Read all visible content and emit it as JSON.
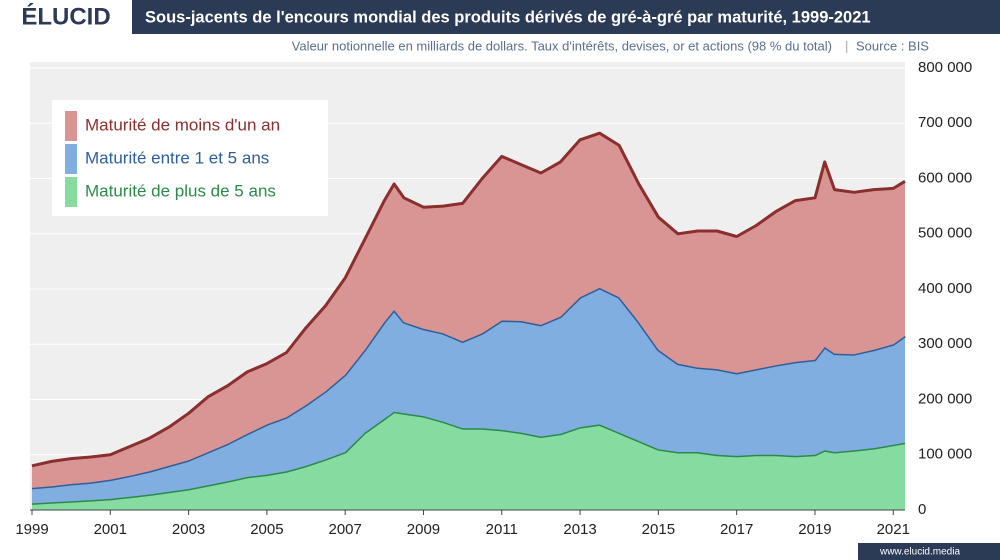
{
  "brand": "ÉLUCID",
  "footer": "www.elucid.media",
  "chart_data": {
    "type": "stacked-area",
    "title": "Sous-jacents de l'encours mondial des produits dérivés de gré-à-gré par maturité, 1999-2021",
    "subtitle": "Valeur notionnelle en milliards de dollars. Taux d'intérêts, devises, or et actions (98 % du total)",
    "source": "Source : BIS",
    "legend": "upper left",
    "grid": true,
    "x": [
      1999,
      1999.5,
      2000,
      2000.5,
      2001,
      2001.5,
      2002,
      2002.5,
      2003,
      2003.5,
      2004,
      2004.5,
      2005,
      2005.5,
      2006,
      2006.5,
      2007,
      2007.5,
      2008,
      2008.25,
      2008.5,
      2009,
      2009.5,
      2010,
      2010.5,
      2011,
      2011.5,
      2012,
      2012.5,
      2013,
      2013.5,
      2014,
      2014.5,
      2015,
      2015.5,
      2016,
      2016.5,
      2017,
      2017.5,
      2018,
      2018.5,
      2019,
      2019.25,
      2019.5,
      2020,
      2020.5,
      2021,
      2021.3
    ],
    "xlim": [
      1999,
      2021.3
    ],
    "xticks": [
      1999,
      2001,
      2003,
      2005,
      2007,
      2009,
      2011,
      2013,
      2015,
      2017,
      2019,
      2021
    ],
    "ylim": [
      0,
      800000
    ],
    "yticks": [
      0,
      {
        "value": 100000,
        "label": "100 000"
      },
      {
        "value": 200000,
        "label": "200 000"
      },
      {
        "value": 300000,
        "label": "300 000"
      },
      {
        "value": 400000,
        "label": "400 000"
      },
      {
        "value": 500000,
        "label": "500 000"
      },
      {
        "value": 600000,
        "label": "600 000"
      },
      {
        "value": 700000,
        "label": "700 000"
      },
      {
        "value": 800000,
        "label": "800 000"
      }
    ],
    "series": [
      {
        "name": "Maturité de moins d'un an",
        "color": "#d99593",
        "line_color": "#8b2e2e",
        "values": [
          40000,
          45000,
          46000,
          46000,
          45000,
          53000,
          60000,
          70000,
          85000,
          100000,
          105000,
          112000,
          110000,
          117000,
          140000,
          155000,
          175000,
          200000,
          220000,
          228000,
          225000,
          220000,
          230000,
          250000,
          280000,
          297000,
          283000,
          275000,
          280000,
          285000,
          280000,
          275000,
          250000,
          240000,
          235000,
          247000,
          250000,
          247000,
          260000,
          278000,
          292000,
          293000,
          335000,
          297000,
          293000,
          290000,
          282000,
          280000
        ]
      },
      {
        "name": "Maturité entre 1 et 5 ans",
        "color": "#80aee0",
        "line_color": "#2e5f9b",
        "values": [
          28000,
          29000,
          31000,
          32000,
          35000,
          38000,
          42000,
          47000,
          52000,
          60000,
          68000,
          78000,
          91000,
          98000,
          110000,
          123000,
          140000,
          150000,
          175000,
          184000,
          165000,
          158000,
          160000,
          157000,
          172000,
          198000,
          202000,
          202000,
          212000,
          235000,
          247000,
          245000,
          215000,
          180000,
          160000,
          153000,
          155000,
          150000,
          155000,
          162000,
          170000,
          172000,
          187000,
          178000,
          174000,
          178000,
          182000,
          193000
        ]
      },
      {
        "name": "Maturité de plus de 5 ans",
        "color": "#86dba0",
        "line_color": "#2b8a4a",
        "values": [
          12000,
          14000,
          16000,
          18000,
          20000,
          24000,
          28000,
          33000,
          38000,
          45000,
          52000,
          60000,
          64000,
          70000,
          80000,
          92000,
          105000,
          140000,
          165000,
          178000,
          175000,
          170000,
          160000,
          148000,
          148000,
          145000,
          140000,
          133000,
          138000,
          150000,
          155000,
          140000,
          125000,
          110000,
          105000,
          105000,
          100000,
          98000,
          100000,
          100000,
          98000,
          100000,
          108000,
          105000,
          108000,
          112000,
          118000,
          122000
        ]
      }
    ]
  }
}
